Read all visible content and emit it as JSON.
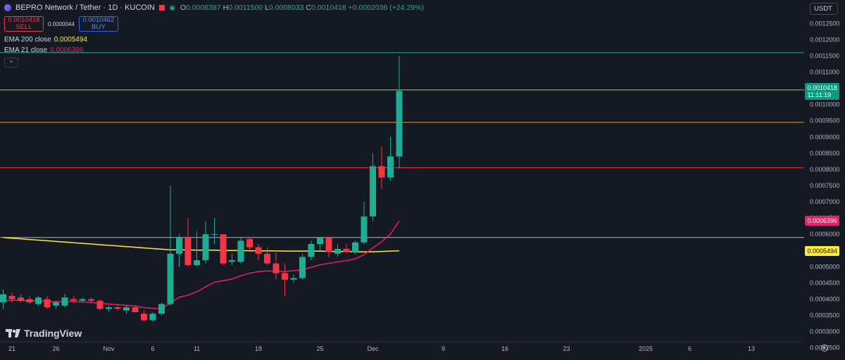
{
  "header": {
    "symbol": "BEPRO Network / Tether · 1D · KUCOIN",
    "o_label": "O",
    "o": "0.0008387",
    "h_label": "H",
    "h": "0.0011500",
    "l_label": "L",
    "l": "0.0008033",
    "c_label": "C",
    "c": "0.0010418",
    "change": "+0.0002036 (+24.29%)"
  },
  "trade": {
    "sell_price": "0.0010418",
    "sell_label": "SELL",
    "spread": "0.0000044",
    "buy_price": "0.0010462",
    "buy_label": "BUY"
  },
  "indicators": {
    "ema200_label": "EMA 200 close",
    "ema200_value": "0.0005494",
    "ema21_label": "EMA 21 close",
    "ema21_value": "0.0006396",
    "collapse_icon": "^"
  },
  "currency": "USDT",
  "branding": {
    "logo_text": "TradingView"
  },
  "price_tag": {
    "price": "0.0010418",
    "countdown": "11:11:19"
  },
  "colors": {
    "up": "#22ab94",
    "down": "#f23645",
    "ema200": "#ffeb3b",
    "ema21": "#e91e63",
    "background": "#151924"
  },
  "chart_data": {
    "type": "candlestick",
    "ylim": [
      0.00022,
      0.00128
    ],
    "y_ticks": [
      "0.0012500",
      "0.0012000",
      "0.0011500",
      "0.0011000",
      "0.0010500",
      "0.0010000",
      "0.0009500",
      "0.0009000",
      "0.0008500",
      "0.0008000",
      "0.0007500",
      "0.0007000",
      "0.0006500",
      "0.0006000",
      "0.0005500",
      "0.0005000",
      "0.0004500",
      "0.0004000",
      "0.0003500",
      "0.0003000",
      "0.0002500"
    ],
    "x_ticks": [
      {
        "label": "21",
        "index": 1
      },
      {
        "label": "26",
        "index": 6
      },
      {
        "label": "Nov",
        "index": 12
      },
      {
        "label": "6",
        "index": 17
      },
      {
        "label": "11",
        "index": 22
      },
      {
        "label": "18",
        "index": 29
      },
      {
        "label": "25",
        "index": 36
      },
      {
        "label": "Dec",
        "index": 42
      },
      {
        "label": "9",
        "index": 50
      },
      {
        "label": "16",
        "index": 57
      },
      {
        "label": "23",
        "index": 64
      },
      {
        "label": "2025",
        "index": 73
      },
      {
        "label": "6",
        "index": 78
      },
      {
        "label": "13",
        "index": 85
      }
    ],
    "candles": [
      {
        "o": 0.00039,
        "h": 0.00043,
        "l": 0.00037,
        "c": 0.000415
      },
      {
        "o": 0.00041,
        "h": 0.00042,
        "l": 0.00039,
        "c": 0.0004
      },
      {
        "o": 0.000405,
        "h": 0.000415,
        "l": 0.00039,
        "c": 0.000395
      },
      {
        "o": 0.0004,
        "h": 0.00041,
        "l": 0.000385,
        "c": 0.00039
      },
      {
        "o": 0.000385,
        "h": 0.00041,
        "l": 0.00038,
        "c": 0.000405
      },
      {
        "o": 0.0004,
        "h": 0.00041,
        "l": 0.00037,
        "c": 0.000375
      },
      {
        "o": 0.00038,
        "h": 0.000395,
        "l": 0.00037,
        "c": 0.00039
      },
      {
        "o": 0.00038,
        "h": 0.000415,
        "l": 0.000375,
        "c": 0.000405
      },
      {
        "o": 0.0004,
        "h": 0.00041,
        "l": 0.00039,
        "c": 0.000395
      },
      {
        "o": 0.000395,
        "h": 0.000405,
        "l": 0.00039,
        "c": 0.0004
      },
      {
        "o": 0.0004,
        "h": 0.000405,
        "l": 0.00039,
        "c": 0.000395
      },
      {
        "o": 0.000395,
        "h": 0.0004,
        "l": 0.000365,
        "c": 0.00037
      },
      {
        "o": 0.00037,
        "h": 0.00038,
        "l": 0.00036,
        "c": 0.000375
      },
      {
        "o": 0.000375,
        "h": 0.000385,
        "l": 0.000365,
        "c": 0.00037
      },
      {
        "o": 0.000365,
        "h": 0.00038,
        "l": 0.000355,
        "c": 0.000375
      },
      {
        "o": 0.000375,
        "h": 0.00038,
        "l": 0.00036,
        "c": 0.00036
      },
      {
        "o": 0.000355,
        "h": 0.000365,
        "l": 0.00033,
        "c": 0.000335
      },
      {
        "o": 0.000335,
        "h": 0.00036,
        "l": 0.00033,
        "c": 0.000355
      },
      {
        "o": 0.000355,
        "h": 0.00039,
        "l": 0.00035,
        "c": 0.000385
      },
      {
        "o": 0.000385,
        "h": 0.00075,
        "l": 0.00038,
        "c": 0.00054
      },
      {
        "o": 0.00054,
        "h": 0.0006,
        "l": 0.0005,
        "c": 0.00059
      },
      {
        "o": 0.00059,
        "h": 0.00065,
        "l": 0.0005,
        "c": 0.000505
      },
      {
        "o": 0.000505,
        "h": 0.00061,
        "l": 0.0005,
        "c": 0.00052
      },
      {
        "o": 0.00052,
        "h": 0.00064,
        "l": 0.00051,
        "c": 0.0006
      },
      {
        "o": 0.0006,
        "h": 0.00065,
        "l": 0.00057,
        "c": 0.0006
      },
      {
        "o": 0.0006,
        "h": 0.0006,
        "l": 0.000505,
        "c": 0.00051
      },
      {
        "o": 0.000515,
        "h": 0.00054,
        "l": 0.000505,
        "c": 0.00052
      },
      {
        "o": 0.000515,
        "h": 0.00059,
        "l": 0.00051,
        "c": 0.00058
      },
      {
        "o": 0.000585,
        "h": 0.00059,
        "l": 0.00055,
        "c": 0.00056
      },
      {
        "o": 0.00056,
        "h": 0.00057,
        "l": 0.00052,
        "c": 0.00054
      },
      {
        "o": 0.00054,
        "h": 0.00056,
        "l": 0.000505,
        "c": 0.00051
      },
      {
        "o": 0.00051,
        "h": 0.00055,
        "l": 0.00046,
        "c": 0.00048
      },
      {
        "o": 0.00048,
        "h": 0.00051,
        "l": 0.00041,
        "c": 0.00046
      },
      {
        "o": 0.00046,
        "h": 0.000475,
        "l": 0.00045,
        "c": 0.000465
      },
      {
        "o": 0.000465,
        "h": 0.00054,
        "l": 0.00046,
        "c": 0.00053
      },
      {
        "o": 0.00053,
        "h": 0.00058,
        "l": 0.00052,
        "c": 0.00057
      },
      {
        "o": 0.00057,
        "h": 0.00059,
        "l": 0.00055,
        "c": 0.00059
      },
      {
        "o": 0.00059,
        "h": 0.00059,
        "l": 0.00053,
        "c": 0.000545
      },
      {
        "o": 0.00054,
        "h": 0.00057,
        "l": 0.00053,
        "c": 0.000555
      },
      {
        "o": 0.000555,
        "h": 0.00057,
        "l": 0.00054,
        "c": 0.000545
      },
      {
        "o": 0.000545,
        "h": 0.00058,
        "l": 0.00054,
        "c": 0.000575
      },
      {
        "o": 0.000575,
        "h": 0.0007,
        "l": 0.00057,
        "c": 0.000655
      },
      {
        "o": 0.000655,
        "h": 0.00085,
        "l": 0.00064,
        "c": 0.00081
      },
      {
        "o": 0.00081,
        "h": 0.00087,
        "l": 0.00074,
        "c": 0.000775
      },
      {
        "o": 0.000775,
        "h": 0.0009,
        "l": 0.000765,
        "c": 0.00084
      },
      {
        "o": 0.00084,
        "h": 0.00115,
        "l": 0.000803,
        "c": 0.001042
      }
    ],
    "ema21": [
      0.000395,
      0.000396,
      0.000396,
      0.000395,
      0.000395,
      0.000393,
      0.000392,
      0.000392,
      0.000392,
      0.000391,
      0.00039,
      0.000387,
      0.000385,
      0.000383,
      0.000381,
      0.000379,
      0.000374,
      0.000372,
      0.000371,
      0.000388,
      0.000406,
      0.000412,
      0.000423,
      0.000438,
      0.000452,
      0.000457,
      0.000462,
      0.000472,
      0.00048,
      0.000485,
      0.000487,
      0.000487,
      0.000485,
      0.000488,
      0.000491,
      0.000498,
      0.000506,
      0.00051,
      0.000515,
      0.000519,
      0.000524,
      0.000537,
      0.000558,
      0.000577,
      0.000601,
      0.000641
    ],
    "ema200": [
      0.00059,
      0.000588,
      0.000586,
      0.000584,
      0.000582,
      0.00058,
      0.000578,
      0.000576,
      0.000574,
      0.000572,
      0.00057,
      0.000568,
      0.000566,
      0.000564,
      0.000562,
      0.00056,
      0.000558,
      0.000556,
      0.000554,
      0.000552,
      0.000552,
      0.000552,
      0.000551,
      0.000551,
      0.000551,
      0.00055,
      0.00055,
      0.00055,
      0.000549,
      0.000549,
      0.000549,
      0.000549,
      0.000548,
      0.000548,
      0.000548,
      0.000548,
      0.000548,
      0.000547,
      0.000547,
      0.000547,
      0.000546,
      0.000546,
      0.000546,
      0.000547,
      0.000548,
      0.000549
    ],
    "hlines": [
      {
        "value": 0.00116,
        "color": "#22ab94"
      },
      {
        "value": 0.001045,
        "color": "#a6c75a"
      },
      {
        "value": 0.000945,
        "color": "#ff9800"
      },
      {
        "value": 0.000805,
        "color": "#f23645"
      },
      {
        "value": 0.00059,
        "color": "#b2b5be"
      }
    ]
  }
}
